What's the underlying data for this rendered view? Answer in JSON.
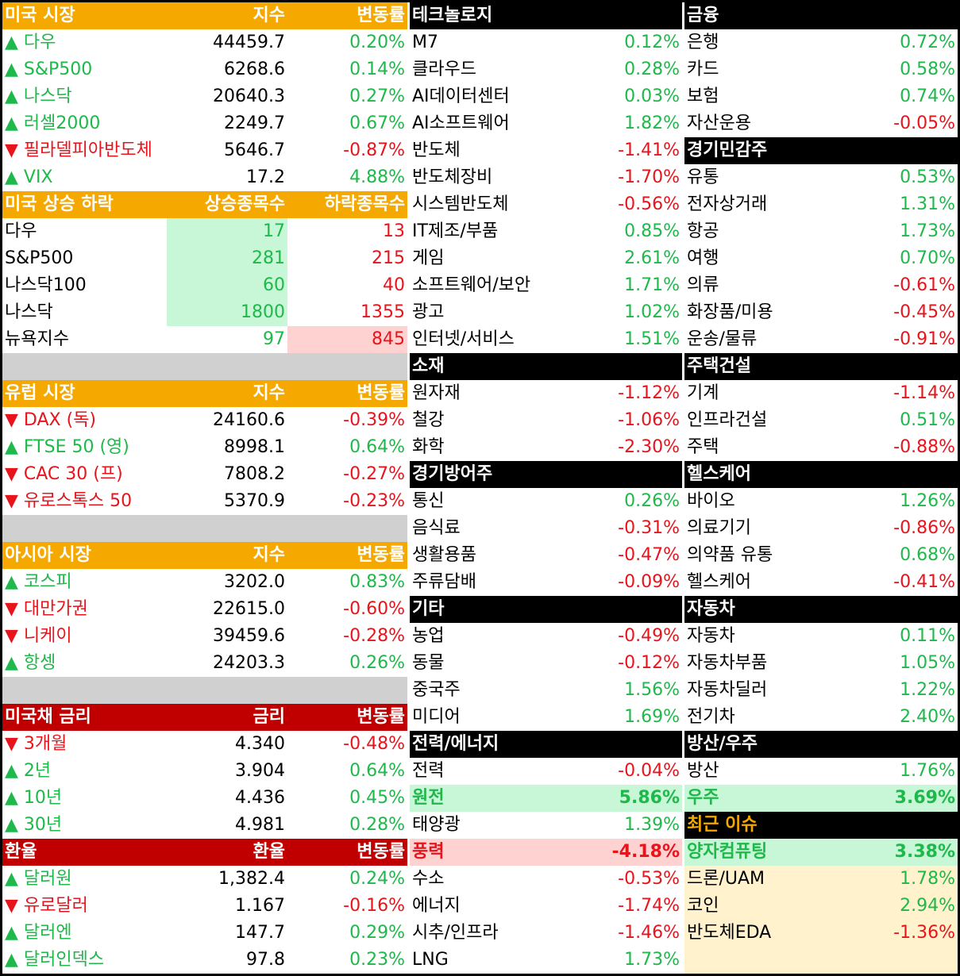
{
  "left": [
    {
      "header": [
        "미국 시장",
        "지수",
        "변동률"
      ],
      "bg": "#f5a800",
      "rows": [
        [
          "▲ 다우",
          "44459.7",
          "0.20%"
        ],
        [
          "▲ S&P500",
          "6268.6",
          "0.14%"
        ],
        [
          "▲ 나스닥",
          "20640.3",
          "0.27%"
        ],
        [
          "▲ 러셀2000",
          "2249.7",
          "0.67%"
        ],
        [
          "▼ 필라델피아반도체",
          "5646.7",
          "-0.87%"
        ],
        [
          "▲ VIX",
          "17.2",
          "4.88%"
        ]
      ]
    },
    {
      "header": [
        "미국 상승 하락",
        "상승종목수",
        "하락종목수"
      ],
      "bg": "#f5a800",
      "rows": [
        [
          "다우",
          "17",
          "13"
        ],
        [
          "S&P500",
          "281",
          "215"
        ],
        [
          "나스닥100",
          "60",
          "40"
        ],
        [
          "나스닥",
          "1800",
          "1355"
        ],
        [
          "뉴욕지수",
          "97",
          "845"
        ]
      ],
      "count_bg": [
        [
          "#c8f7d8",
          "#ffffff"
        ],
        [
          "#c8f7d8",
          "#ffffff"
        ],
        [
          "#c8f7d8",
          "#ffffff"
        ],
        [
          "#c8f7d8",
          "#ffffff"
        ],
        [
          "#ffffff",
          "#ffd2d2"
        ]
      ]
    },
    {
      "header": [
        "유럽 시장",
        "지수",
        "변동률"
      ],
      "bg": "#f5a800",
      "rows": [
        [
          "▼ DAX (독)",
          "24160.6",
          "-0.39%"
        ],
        [
          "▲ FTSE 50 (영)",
          "8998.1",
          "0.64%"
        ],
        [
          "▼ CAC 30 (프)",
          "7808.2",
          "-0.27%"
        ],
        [
          "▼ 유로스톡스 50",
          "5370.9",
          "-0.23%"
        ]
      ]
    },
    {
      "header": [
        "아시아 시장",
        "지수",
        "변동률"
      ],
      "bg": "#f5a800",
      "rows": [
        [
          "▲ 코스피",
          "3202.0",
          "0.83%"
        ],
        [
          "▼ 대만가권",
          "22615.0",
          "-0.60%"
        ],
        [
          "▼ 니케이",
          "39459.6",
          "-0.28%"
        ],
        [
          "▲ 항셍",
          "24203.3",
          "0.26%"
        ]
      ]
    },
    {
      "header": [
        "미국채 금리",
        "금리",
        "변동률"
      ],
      "bg": "#c00000",
      "rows": [
        [
          "▼ 3개월",
          "4.340",
          "-0.48%"
        ],
        [
          "▲ 2년",
          "3.904",
          "0.64%"
        ],
        [
          "▲ 10년",
          "4.436",
          "0.45%"
        ],
        [
          "▲ 30년",
          "4.981",
          "0.28%"
        ]
      ]
    },
    {
      "header": [
        "환율",
        "환율",
        "변동률"
      ],
      "bg": "#c00000",
      "rows": [
        [
          "▲ 달러원",
          "1,382.4",
          "0.24%"
        ],
        [
          "▼ 유로달러",
          "1.167",
          "-0.16%"
        ],
        [
          "▲ 달러엔",
          "147.7",
          "0.29%"
        ],
        [
          "▲ 달러인덱스",
          "97.8",
          "0.23%"
        ]
      ]
    }
  ],
  "middle": [
    {
      "header": "테크놀로지",
      "rows": [
        [
          "M7",
          "0.12%"
        ],
        [
          "클라우드",
          "0.28%"
        ],
        [
          "AI데이터센터",
          "0.03%"
        ],
        [
          "AI소프트웨어",
          "1.82%"
        ],
        [
          "반도체",
          "-1.41%"
        ],
        [
          "반도체장비",
          "-1.70%"
        ],
        [
          "시스템반도체",
          "-0.56%"
        ],
        [
          "IT제조/부품",
          "0.85%"
        ],
        [
          "게임",
          "2.61%"
        ],
        [
          "소프트웨어/보안",
          "1.71%"
        ],
        [
          "광고",
          "1.02%"
        ],
        [
          "인터넷/서비스",
          "1.51%"
        ]
      ]
    },
    {
      "header": "소재",
      "rows": [
        [
          "원자재",
          "-1.12%"
        ],
        [
          "철강",
          "-1.06%"
        ],
        [
          "화학",
          "-2.30%"
        ]
      ]
    },
    {
      "header": "경기방어주",
      "rows": [
        [
          "통신",
          "0.26%"
        ],
        [
          "음식료",
          "-0.31%"
        ],
        [
          "생활용품",
          "-0.47%"
        ],
        [
          "주류담배",
          "-0.09%"
        ]
      ]
    },
    {
      "header": "기타",
      "rows": [
        [
          "농업",
          "-0.49%"
        ],
        [
          "동물",
          "-0.12%"
        ],
        [
          "중국주",
          "1.56%"
        ],
        [
          "미디어",
          "1.69%"
        ]
      ]
    },
    {
      "header": "전력/에너지",
      "rows": [
        [
          "전력",
          "-0.04%"
        ],
        [
          "원전",
          "5.86%"
        ],
        [
          "태양광",
          "1.39%"
        ],
        [
          "풍력",
          "-4.18%"
        ],
        [
          "수소",
          "-0.53%"
        ],
        [
          "에너지",
          "-1.74%"
        ],
        [
          "시추/인프라",
          "-1.46%"
        ],
        [
          "LNG",
          "1.73%"
        ]
      ],
      "row_bg": [
        "#ffffff",
        "#c8f7d8",
        "#ffffff",
        "#ffd2d2",
        "#ffffff",
        "#ffffff",
        "#ffffff",
        "#ffffff"
      ],
      "bold": [
        false,
        true,
        false,
        true,
        false,
        false,
        false,
        false
      ]
    }
  ],
  "right": [
    {
      "header": "금융",
      "rows": [
        [
          "은행",
          "0.72%"
        ],
        [
          "카드",
          "0.58%"
        ],
        [
          "보험",
          "0.74%"
        ],
        [
          "자산운용",
          "-0.05%"
        ]
      ]
    },
    {
      "header": "경기민감주",
      "rows": [
        [
          "유통",
          "0.53%"
        ],
        [
          "전자상거래",
          "1.31%"
        ],
        [
          "항공",
          "1.73%"
        ],
        [
          "여행",
          "0.70%"
        ],
        [
          "의류",
          "-0.61%"
        ],
        [
          "화장품/미용",
          "-0.45%"
        ],
        [
          "운송/물류",
          "-0.91%"
        ]
      ]
    },
    {
      "header": "주택건설",
      "rows": [
        [
          "기계",
          "-1.14%"
        ],
        [
          "인프라건설",
          "0.51%"
        ],
        [
          "주택",
          "-0.88%"
        ]
      ]
    },
    {
      "header": "헬스케어",
      "rows": [
        [
          "바이오",
          "1.26%"
        ],
        [
          "의료기기",
          "-0.86%"
        ],
        [
          "의약품 유통",
          "0.68%"
        ],
        [
          "헬스케어",
          "-0.41%"
        ]
      ]
    },
    {
      "header": "자동차",
      "rows": [
        [
          "자동차",
          "0.11%"
        ],
        [
          "자동차부품",
          "1.05%"
        ],
        [
          "자동차딜러",
          "1.22%"
        ],
        [
          "전기차",
          "2.40%"
        ]
      ]
    },
    {
      "header": "방산/우주",
      "rows": [
        [
          "방산",
          "1.76%"
        ],
        [
          "우주",
          "3.69%"
        ]
      ],
      "row_bg": [
        "#ffffff",
        "#c8f7d8"
      ],
      "bold": [
        false,
        true
      ]
    },
    {
      "header": "최근 이슈",
      "header_color": "#f5a800",
      "rows": [
        [
          "양자컴퓨팅",
          "3.38%"
        ],
        [
          "드론/UAM",
          "1.78%"
        ],
        [
          "코인",
          "2.94%"
        ],
        [
          "반도체EDA",
          "-1.36%"
        ]
      ],
      "row_bg": [
        "#c8f7d8",
        "#fff2cc",
        "#fff2cc",
        "#fff2cc"
      ],
      "bold": [
        true,
        false,
        false,
        false
      ],
      "fill": "#fff2cc"
    }
  ]
}
